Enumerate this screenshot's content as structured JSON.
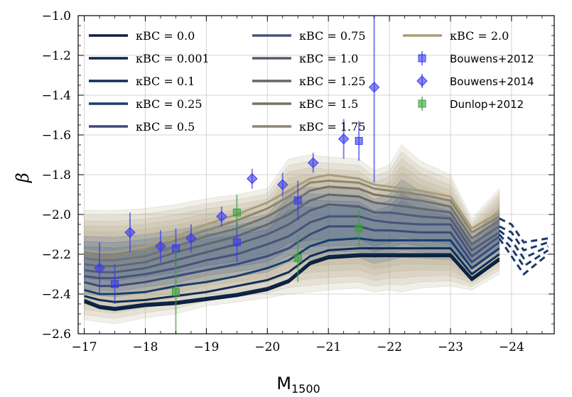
{
  "chart_data": {
    "type": "line",
    "xlabel": "M",
    "xlabel_sub": "1500",
    "ylabel": "β",
    "xlim": [
      -16.9,
      -24.7
    ],
    "ylim": [
      -2.6,
      -1.0
    ],
    "x_ticks": [
      -17,
      -18,
      -19,
      -20,
      -21,
      -22,
      -23,
      -24
    ],
    "x_tick_labels": [
      "−17",
      "−18",
      "−19",
      "−20",
      "−21",
      "−22",
      "−23",
      "−24"
    ],
    "y_ticks": [
      -2.6,
      -2.4,
      -2.2,
      -2.0,
      -1.8,
      -1.6,
      -1.4,
      -1.2,
      -1.0
    ],
    "y_tick_labels": [
      "−2.6",
      "−2.4",
      "−2.2",
      "−2.0",
      "−1.8",
      "−1.6",
      "−1.4",
      "−1.2",
      "−1.0"
    ],
    "grid": true,
    "legend_position": "top",
    "x": [
      -17.0,
      -17.25,
      -17.5,
      -18.0,
      -18.5,
      -19.0,
      -19.5,
      -20.0,
      -20.35,
      -20.7,
      -21.0,
      -21.5,
      -21.75,
      -22.0,
      -22.5,
      -23.0,
      -23.35,
      -23.8
    ],
    "series": [
      {
        "name": "κBC = 0.0",
        "color": "#0b1f3f",
        "values": [
          -2.44,
          -2.47,
          -2.48,
          -2.46,
          -2.45,
          -2.43,
          -2.41,
          -2.38,
          -2.34,
          -2.25,
          -2.22,
          -2.21,
          -2.21,
          -2.21,
          -2.21,
          -2.21,
          -2.33,
          -2.23
        ]
      },
      {
        "name": "κBC = 0.001",
        "color": "#0d2548",
        "values": [
          -2.43,
          -2.46,
          -2.47,
          -2.45,
          -2.44,
          -2.42,
          -2.4,
          -2.37,
          -2.33,
          -2.24,
          -2.21,
          -2.2,
          -2.2,
          -2.2,
          -2.2,
          -2.2,
          -2.32,
          -2.22
        ]
      },
      {
        "name": "κBC = 0.1",
        "color": "#112d58",
        "values": [
          -2.41,
          -2.43,
          -2.44,
          -2.43,
          -2.41,
          -2.39,
          -2.36,
          -2.33,
          -2.29,
          -2.21,
          -2.18,
          -2.17,
          -2.17,
          -2.17,
          -2.17,
          -2.17,
          -2.3,
          -2.2
        ]
      },
      {
        "name": "κBC = 0.25",
        "color": "#173d70",
        "values": [
          -2.38,
          -2.4,
          -2.4,
          -2.39,
          -2.36,
          -2.34,
          -2.31,
          -2.27,
          -2.23,
          -2.16,
          -2.13,
          -2.12,
          -2.13,
          -2.13,
          -2.13,
          -2.13,
          -2.27,
          -2.17
        ]
      },
      {
        "name": "κBC = 0.5",
        "color": "#3c4a78",
        "values": [
          -2.34,
          -2.36,
          -2.36,
          -2.34,
          -2.31,
          -2.28,
          -2.25,
          -2.21,
          -2.17,
          -2.1,
          -2.06,
          -2.06,
          -2.08,
          -2.08,
          -2.09,
          -2.09,
          -2.24,
          -2.14
        ]
      },
      {
        "name": "κBC = 0.75",
        "color": "#495278",
        "values": [
          -2.31,
          -2.32,
          -2.32,
          -2.3,
          -2.27,
          -2.23,
          -2.2,
          -2.15,
          -2.11,
          -2.04,
          -2.01,
          -2.01,
          -2.03,
          -2.04,
          -2.05,
          -2.05,
          -2.21,
          -2.11
        ]
      },
      {
        "name": "κBC = 1.0",
        "color": "#565a73",
        "values": [
          -2.28,
          -2.29,
          -2.29,
          -2.27,
          -2.23,
          -2.19,
          -2.15,
          -2.1,
          -2.05,
          -1.98,
          -1.95,
          -1.96,
          -1.99,
          -1.99,
          -2.01,
          -2.02,
          -2.18,
          -2.09
        ]
      },
      {
        "name": "κBC = 1.25",
        "color": "#65666c",
        "values": [
          -2.25,
          -2.26,
          -2.26,
          -2.24,
          -2.19,
          -2.15,
          -2.11,
          -2.05,
          -2.0,
          -1.93,
          -1.9,
          -1.91,
          -1.94,
          -1.95,
          -1.97,
          -1.99,
          -2.15,
          -2.06
        ]
      },
      {
        "name": "κBC = 1.5",
        "color": "#767268",
        "values": [
          -2.22,
          -2.23,
          -2.23,
          -2.21,
          -2.16,
          -2.11,
          -2.07,
          -2.01,
          -1.95,
          -1.88,
          -1.86,
          -1.87,
          -1.9,
          -1.91,
          -1.93,
          -1.96,
          -2.12,
          -2.03
        ]
      },
      {
        "name": "κBC = 1.75",
        "color": "#8e856f",
        "values": [
          -2.2,
          -2.21,
          -2.21,
          -2.18,
          -2.13,
          -2.08,
          -2.03,
          -1.97,
          -1.91,
          -1.84,
          -1.83,
          -1.84,
          -1.87,
          -1.88,
          -1.9,
          -1.93,
          -2.09,
          -2.01
        ]
      },
      {
        "name": "κBC = 2.0",
        "color": "#a89e79",
        "values": [
          -2.18,
          -2.19,
          -2.19,
          -2.16,
          -2.11,
          -2.05,
          -2.0,
          -1.94,
          -1.88,
          -1.82,
          -1.8,
          -1.82,
          -1.85,
          -1.86,
          -1.88,
          -1.91,
          -2.07,
          -1.99
        ]
      }
    ],
    "band": {
      "x": [
        -17.0,
        -17.5,
        -18.0,
        -18.5,
        -19.0,
        -19.5,
        -20.0,
        -20.35,
        -20.7,
        -21.0,
        -21.5,
        -21.75,
        -22.0,
        -22.2,
        -22.5,
        -23.0,
        -23.35,
        -23.8
      ],
      "upper": [
        -1.98,
        -1.98,
        -1.97,
        -1.95,
        -1.92,
        -1.9,
        -1.87,
        -1.72,
        -1.7,
        -1.71,
        -1.72,
        -1.78,
        -1.75,
        -1.65,
        -1.73,
        -1.8,
        -2.02,
        -1.87
      ],
      "lower": [
        -2.53,
        -2.55,
        -2.52,
        -2.5,
        -2.46,
        -2.44,
        -2.42,
        -2.4,
        -2.39,
        -2.38,
        -2.37,
        -2.39,
        -2.38,
        -2.39,
        -2.37,
        -2.36,
        -2.38,
        -2.3
      ]
    },
    "extrapolation": {
      "color": "#1b3a6b",
      "x": [
        -23.8,
        -24.0,
        -24.2,
        -24.6
      ],
      "lines": [
        [
          -2.12,
          -2.21,
          -2.3,
          -2.2
        ],
        [
          -2.1,
          -2.17,
          -2.26,
          -2.18
        ],
        [
          -2.08,
          -2.13,
          -2.22,
          -2.16
        ],
        [
          -2.06,
          -2.09,
          -2.18,
          -2.14
        ],
        [
          -2.02,
          -2.05,
          -2.14,
          -2.12
        ]
      ]
    },
    "observations": [
      {
        "name": "Bouwens+2012",
        "marker": "square",
        "color": "#3a3aee",
        "points": [
          {
            "x": -17.5,
            "y": -2.35,
            "err": 0.1
          },
          {
            "x": -18.5,
            "y": -2.17,
            "err": 0.1
          },
          {
            "x": -19.5,
            "y": -2.14,
            "err": 0.1
          },
          {
            "x": -20.5,
            "y": -1.93,
            "err": 0.1
          },
          {
            "x": -21.5,
            "y": -1.63,
            "err": 0.1
          }
        ]
      },
      {
        "name": "Bouwens+2014",
        "marker": "diamond",
        "color": "#3a3aee",
        "points": [
          {
            "x": -17.25,
            "y": -2.27,
            "err": 0.13
          },
          {
            "x": -17.75,
            "y": -2.09,
            "err": 0.1
          },
          {
            "x": -18.25,
            "y": -2.16,
            "err": 0.08
          },
          {
            "x": -18.75,
            "y": -2.12,
            "err": 0.07
          },
          {
            "x": -19.25,
            "y": -2.01,
            "err": 0.05
          },
          {
            "x": -19.75,
            "y": -1.82,
            "err": 0.05
          },
          {
            "x": -20.25,
            "y": -1.85,
            "err": 0.06
          },
          {
            "x": -20.75,
            "y": -1.74,
            "err": 0.05
          },
          {
            "x": -21.25,
            "y": -1.62,
            "err": 0.1
          },
          {
            "x": -21.75,
            "y": -1.36,
            "err": 0.48
          }
        ]
      },
      {
        "name": "Dunlop+2012",
        "marker": "square",
        "color": "#3aa03a",
        "points": [
          {
            "x": -18.5,
            "y": -2.39,
            "err": 0.22
          },
          {
            "x": -19.5,
            "y": -1.99,
            "err": 0.09
          },
          {
            "x": -20.5,
            "y": -2.22,
            "err": 0.12
          },
          {
            "x": -21.5,
            "y": -2.07,
            "err": 0.09
          }
        ]
      }
    ],
    "legend": {
      "columns": [
        [
          "κBC = 0.0",
          "κBC = 0.001",
          "κBC = 0.1",
          "κBC = 0.25",
          "κBC = 0.5"
        ],
        [
          "κBC = 0.75",
          "κBC = 1.0",
          "κBC = 1.25",
          "κBC = 1.5",
          "κBC = 1.75"
        ],
        [
          "κBC = 2.0",
          "Bouwens+2012",
          "Bouwens+2014",
          "Dunlop+2012"
        ]
      ]
    }
  }
}
